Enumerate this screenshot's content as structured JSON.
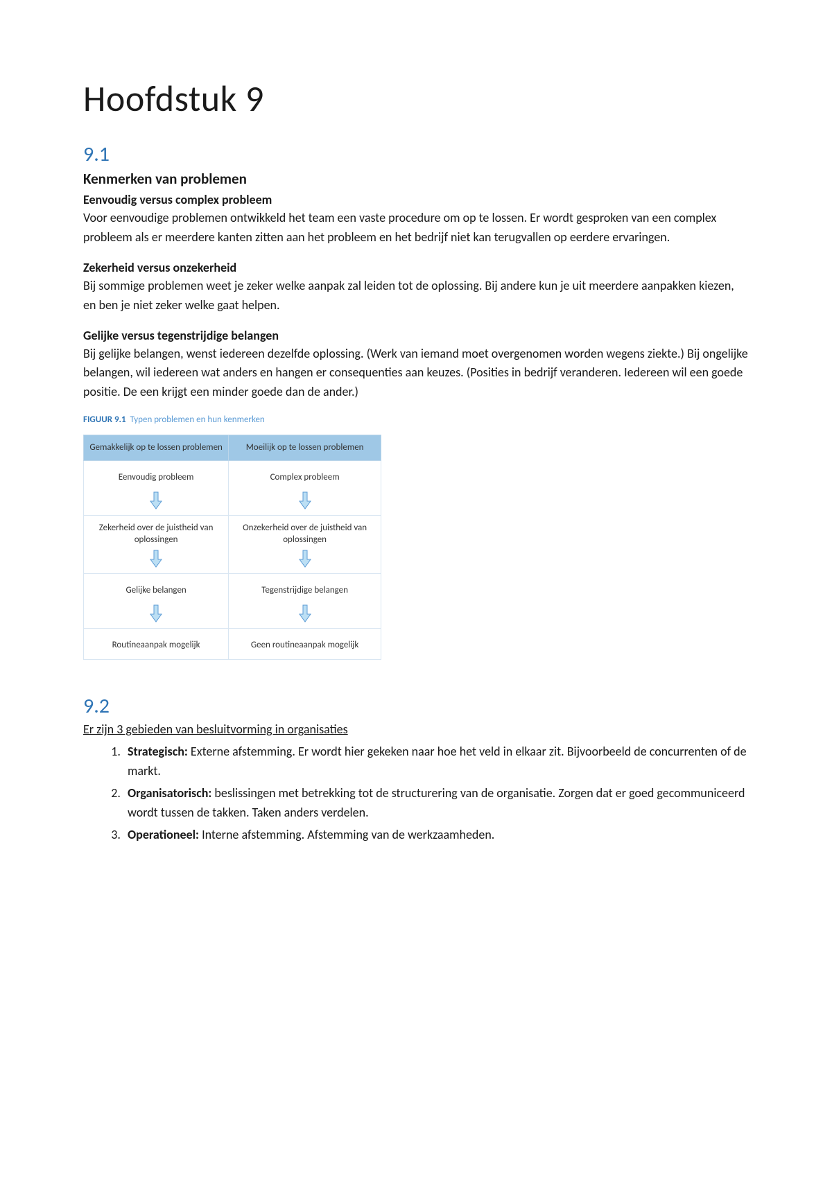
{
  "title": "Hoofdstuk 9",
  "section_9_1": {
    "number": "9.1",
    "heading": "Kenmerken van problemen",
    "blocks": [
      {
        "sub": "Eenvoudig versus complex probleem",
        "text": "Voor eenvoudige problemen ontwikkeld het team een vaste procedure om op te lossen. Er wordt gesproken van een complex probleem als er meerdere kanten zitten aan het probleem en het bedrijf niet kan terugvallen op eerdere ervaringen."
      },
      {
        "sub": "Zekerheid versus onzekerheid",
        "text": "Bij sommige problemen weet je zeker welke aanpak zal leiden tot de oplossing. Bij andere kun je uit meerdere aanpakken kiezen, en ben je niet zeker welke gaat helpen."
      },
      {
        "sub": "Gelijke versus tegenstrijdige belangen",
        "text": "Bij gelijke belangen, wenst iedereen dezelfde oplossing. (Werk van iemand moet overgenomen worden wegens ziekte.) Bij ongelijke belangen, wil iedereen wat anders en hangen er consequenties aan keuzes. (Posities in bedrijf veranderen. Iedereen wil een goede positie. De een krijgt een minder goede dan de ander.)"
      }
    ],
    "figure": {
      "label_bold": "FIGUUR 9.1",
      "label_rest": "Typen problemen en hun kenmerken",
      "header_bg": "#9fc8e6",
      "header_border": "#bcd6ea",
      "cell_border": "#d9e6f2",
      "arrow_fill": "#bcdff4",
      "arrow_stroke": "#5b9bd5",
      "columns": [
        "Gemakkelijk op te lossen problemen",
        "Moeilijk op te lossen problemen"
      ],
      "left": [
        "Eenvoudig probleem",
        "Zekerheid over de juistheid van oplossingen",
        "Gelijke belangen",
        "Routineaanpak mogelijk"
      ],
      "right": [
        "Complex probleem",
        "Onzekerheid over de juistheid van oplossingen",
        "Tegenstrijdige belangen",
        "Geen routineaanpak mogelijk"
      ]
    }
  },
  "section_9_2": {
    "number": "9.2",
    "intro": "Er zijn 3 gebieden van besluitvorming in organisaties",
    "items": [
      {
        "label": "Strategisch:",
        "text": " Externe afstemming. Er wordt hier gekeken naar hoe het veld in elkaar zit. Bijvoorbeeld de concurrenten of de markt."
      },
      {
        "label": "Organisatorisch:",
        "text": " beslissingen met betrekking tot de structurering van de organisatie. Zorgen dat er goed gecommuniceerd wordt tussen de takken. Taken anders verdelen."
      },
      {
        "label": "Operationeel:",
        "text": " Interne afstemming. Afstemming van de werkzaamheden."
      }
    ]
  }
}
